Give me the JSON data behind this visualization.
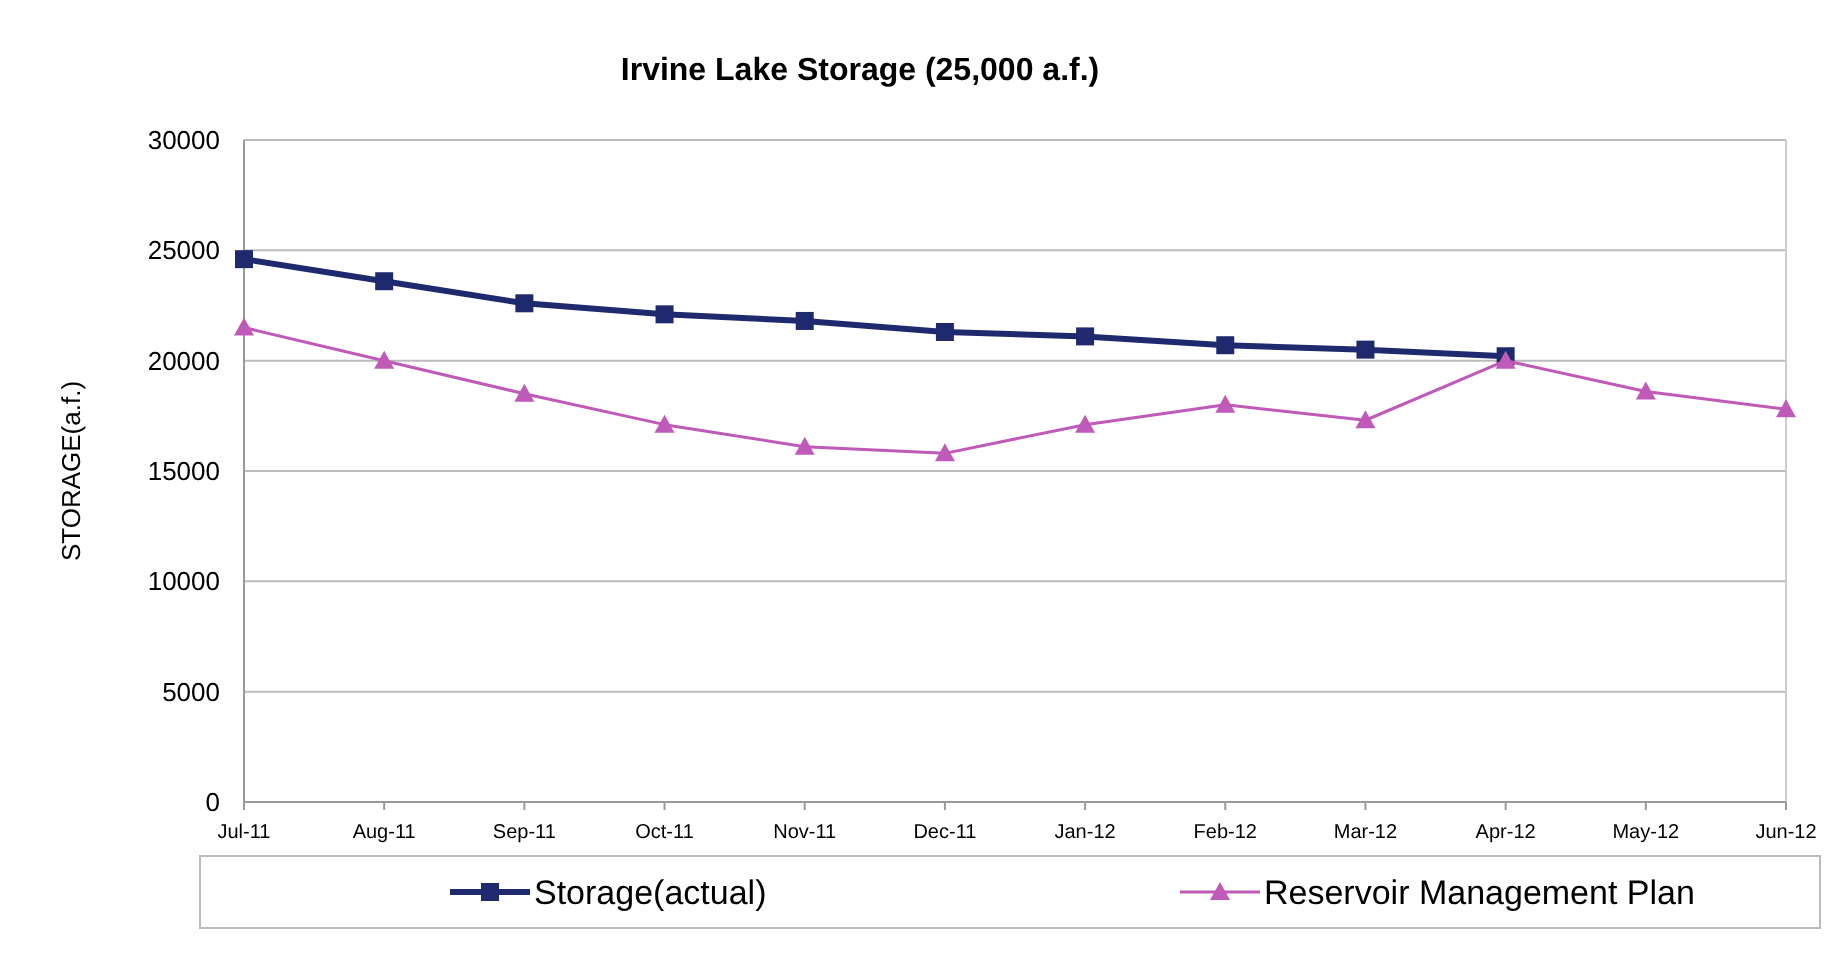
{
  "chart_data": {
    "type": "line",
    "title": "Irvine Lake Storage (25,000 a.f.)",
    "ylabel": "STORAGE(a.f.)",
    "categories": [
      "Jul-11",
      "Aug-11",
      "Sep-11",
      "Oct-11",
      "Nov-11",
      "Dec-11",
      "Jan-12",
      "Feb-12",
      "Mar-12",
      "Apr-12",
      "May-12",
      "Jun-12"
    ],
    "series": [
      {
        "name": "Storage(actual)",
        "color": "#1f2a6e",
        "marker": "square",
        "values": [
          24600,
          23600,
          22600,
          22100,
          21800,
          21300,
          21100,
          20700,
          20500,
          20200,
          null,
          null
        ]
      },
      {
        "name": "Reservoir Management Plan",
        "color": "#c05ab8",
        "marker": "triangle",
        "values": [
          21500,
          20000,
          18500,
          17100,
          16100,
          15800,
          17100,
          18000,
          17300,
          20000,
          18600,
          17800
        ]
      }
    ],
    "ylim": [
      0,
      30000
    ],
    "yticks": [
      0,
      5000,
      10000,
      15000,
      20000,
      25000,
      30000
    ],
    "grid": "y",
    "legend": "bottom"
  }
}
